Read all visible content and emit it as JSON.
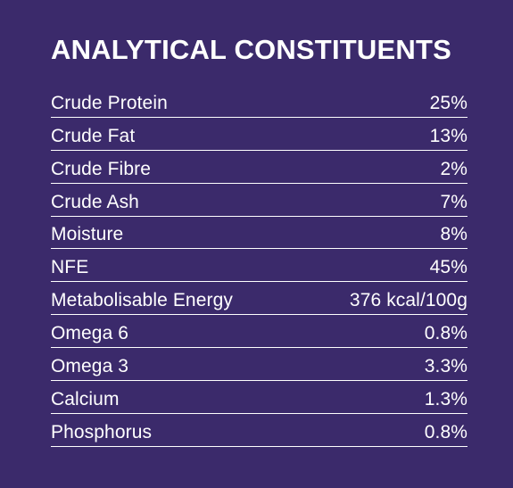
{
  "panel": {
    "title": "ANALYTICAL CONSTITUENTS",
    "background_color": "#3b2a6b",
    "text_color": "#ffffff"
  },
  "constituents": [
    {
      "name": "Crude Protein",
      "value": "25%"
    },
    {
      "name": "Crude Fat",
      "value": "13%"
    },
    {
      "name": "Crude Fibre",
      "value": "2%"
    },
    {
      "name": "Crude Ash",
      "value": "7%"
    },
    {
      "name": "Moisture",
      "value": "8%"
    },
    {
      "name": "NFE",
      "value": "45%"
    },
    {
      "name": "Metabolisable Energy",
      "value": "376 kcal/100g"
    },
    {
      "name": "Omega 6",
      "value": "0.8%"
    },
    {
      "name": "Omega 3",
      "value": "3.3%"
    },
    {
      "name": "Calcium",
      "value": "1.3%"
    },
    {
      "name": "Phosphorus",
      "value": "0.8%"
    }
  ]
}
